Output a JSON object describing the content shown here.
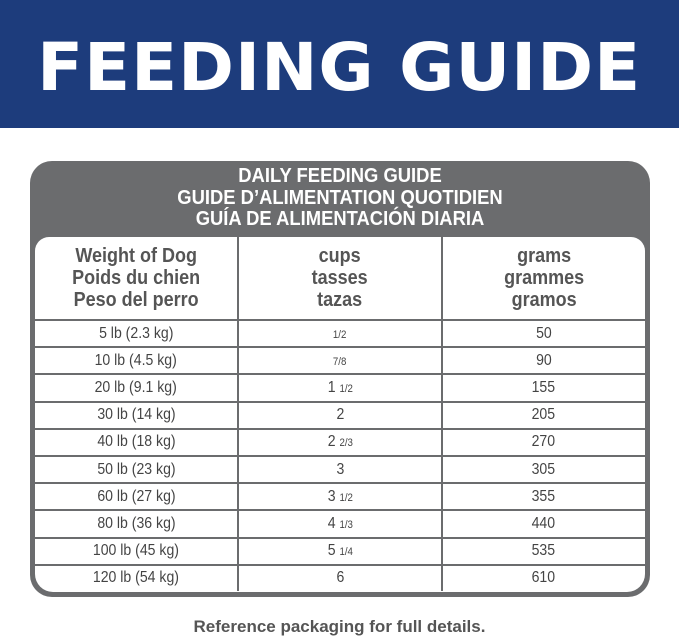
{
  "banner": {
    "title": "FEEDING GUIDE"
  },
  "guide": {
    "titles": [
      "DAILY FEEDING GUIDE",
      "GUIDE D’ALIMENTATION QUOTIDIEN",
      "GUÍA DE ALIMENTACIÓN DIARIA"
    ],
    "headers": [
      [
        "Weight of Dog",
        "Poids du chien",
        "Peso del perro"
      ],
      [
        "cups",
        "tasses",
        "tazas"
      ],
      [
        "grams",
        "grammes",
        "gramos"
      ]
    ],
    "rows": [
      [
        "5 lb (2.3 kg)",
        "1/2",
        "50"
      ],
      [
        "10 lb (4.5 kg)",
        "7/8",
        "90"
      ],
      [
        "20 lb (9.1 kg)",
        "1 1/2",
        "155"
      ],
      [
        "30 lb (14 kg)",
        "2",
        "205"
      ],
      [
        "40 lb (18 kg)",
        "2 2/3",
        "270"
      ],
      [
        "50 lb (23 kg)",
        "3",
        "305"
      ],
      [
        "60 lb (27 kg)",
        "3 1/2",
        "355"
      ],
      [
        "80 lb (36 kg)",
        "4 1/3",
        "440"
      ],
      [
        "100 lb (45 kg)",
        "5 1/4",
        "535"
      ],
      [
        "120 lb (54 kg)",
        "6",
        "610"
      ]
    ]
  },
  "footer": {
    "note": "Reference packaging for full details."
  },
  "colors": {
    "banner": "#1d3c7c",
    "frame": "#6b6c6e"
  }
}
